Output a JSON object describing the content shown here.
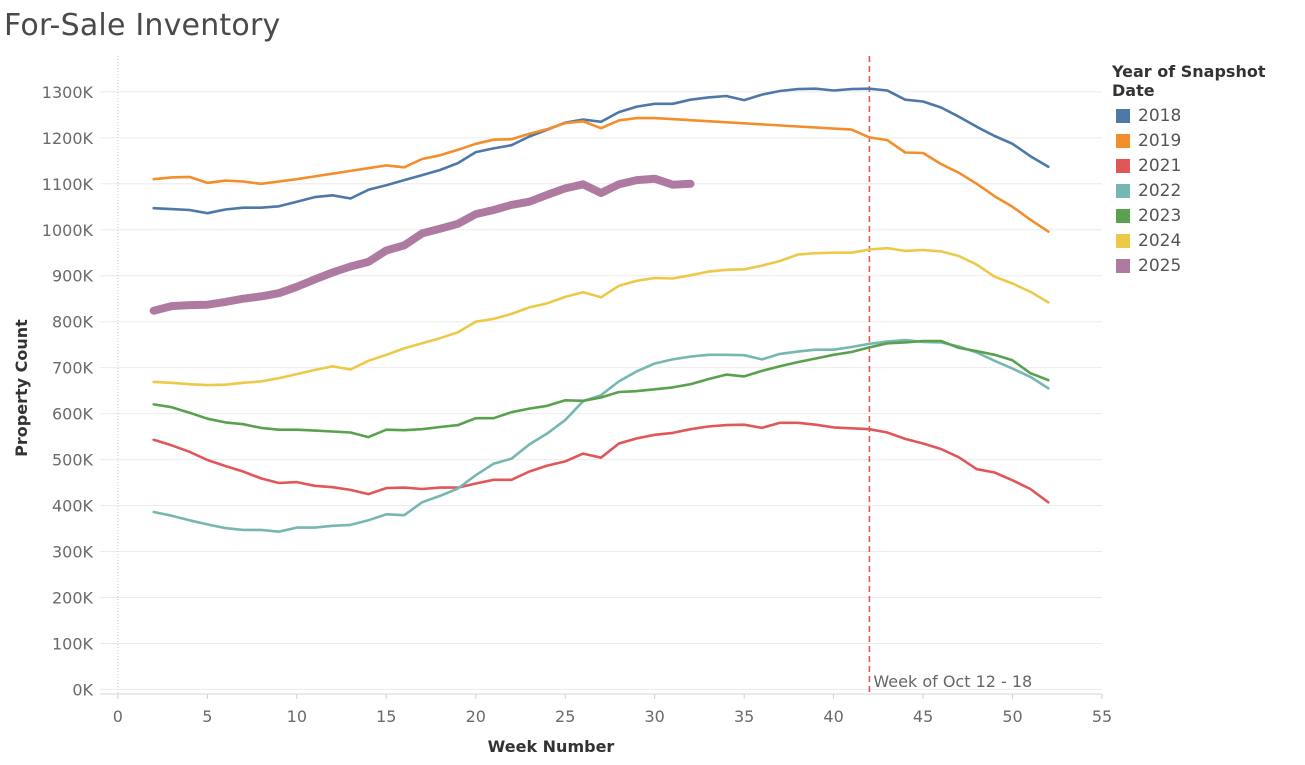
{
  "title": "For-Sale Inventory",
  "chart_data": {
    "type": "line",
    "title": "For-Sale Inventory",
    "xlabel": "Week Number",
    "ylabel": "Property Count",
    "xlim": [
      -1,
      55
    ],
    "ylim": [
      -10,
      1365
    ],
    "x_ticks": [
      0,
      5,
      10,
      15,
      20,
      25,
      30,
      35,
      40,
      45,
      50,
      55
    ],
    "y_ticks": [
      0,
      100,
      200,
      300,
      400,
      500,
      600,
      700,
      800,
      900,
      1000,
      1100,
      1200,
      1300
    ],
    "y_tick_labels": [
      "0K",
      "100K",
      "200K",
      "300K",
      "400K",
      "500K",
      "600K",
      "700K",
      "800K",
      "900K",
      "1000K",
      "1100K",
      "1200K",
      "1300K"
    ],
    "grid": "horizontal",
    "legend": {
      "title": "Year of Snapshot Date",
      "placement": "right"
    },
    "reference_line": {
      "x": 42,
      "label": "Week of Oct 12 - 18",
      "color": "#e15759"
    },
    "series": [
      {
        "name": "2018",
        "color": "#4e79a7",
        "x": [
          2,
          3,
          4,
          5,
          6,
          7,
          8,
          9,
          10,
          11,
          12,
          13,
          14,
          15,
          16,
          17,
          18,
          19,
          20,
          21,
          22,
          23,
          24,
          25,
          26,
          27,
          28,
          29,
          30,
          31,
          32,
          33,
          34,
          35,
          36,
          37,
          38,
          39,
          40,
          41,
          42,
          43,
          44,
          45,
          46,
          47,
          48,
          49,
          50,
          51,
          52
        ],
        "values": [
          1047,
          1045,
          1043,
          1036,
          1044,
          1048,
          1048,
          1051,
          1061,
          1071,
          1075,
          1068,
          1087,
          1097,
          1108,
          1119,
          1130,
          1145,
          1169,
          1177,
          1184,
          1203,
          1218,
          1233,
          1240,
          1235,
          1256,
          1268,
          1274,
          1274,
          1283,
          1288,
          1291,
          1282,
          1294,
          1302,
          1306,
          1307,
          1303,
          1306,
          1307,
          1303,
          1283,
          1279,
          1266,
          1246,
          1224,
          1204,
          1187,
          1160,
          1137
        ]
      },
      {
        "name": "2019",
        "color": "#f28e2b",
        "x": [
          2,
          3,
          4,
          5,
          6,
          7,
          8,
          9,
          10,
          11,
          12,
          13,
          14,
          15,
          16,
          17,
          18,
          19,
          20,
          21,
          22,
          23,
          24,
          25,
          26,
          27,
          28,
          29,
          30,
          41,
          42,
          43,
          44,
          45,
          46,
          47,
          48,
          49,
          50,
          51,
          52
        ],
        "values": [
          1110,
          1114,
          1115,
          1102,
          1107,
          1105,
          1100,
          1105,
          1110,
          1116,
          1122,
          1128,
          1134,
          1140,
          1136,
          1154,
          1162,
          1174,
          1187,
          1196,
          1197,
          1209,
          1219,
          1232,
          1236,
          1221,
          1238,
          1243,
          1243,
          1218,
          1201,
          1195,
          1168,
          1167,
          1143,
          1124,
          1100,
          1073,
          1050,
          1022,
          996
        ]
      },
      {
        "name": "2021",
        "color": "#e15759",
        "x": [
          2,
          3,
          4,
          5,
          6,
          7,
          8,
          9,
          10,
          11,
          12,
          13,
          14,
          15,
          16,
          17,
          18,
          19,
          20,
          21,
          22,
          23,
          24,
          25,
          26,
          27,
          28,
          29,
          30,
          31,
          32,
          33,
          34,
          35,
          36,
          37,
          38,
          39,
          40,
          41,
          42,
          43,
          44,
          45,
          46,
          47,
          48,
          49,
          50,
          51,
          52
        ],
        "values": [
          543,
          531,
          517,
          499,
          486,
          474,
          459,
          449,
          451,
          443,
          440,
          434,
          425,
          438,
          439,
          436,
          439,
          439,
          448,
          456,
          456,
          474,
          487,
          496,
          513,
          504,
          535,
          546,
          554,
          558,
          566,
          572,
          575,
          576,
          569,
          580,
          580,
          576,
          570,
          568,
          566,
          559,
          545,
          535,
          523,
          505,
          479,
          472,
          455,
          436,
          407
        ]
      },
      {
        "name": "2022",
        "color": "#76b7b2",
        "x": [
          2,
          3,
          4,
          5,
          6,
          7,
          8,
          9,
          10,
          11,
          12,
          13,
          14,
          15,
          16,
          17,
          18,
          19,
          20,
          21,
          22,
          23,
          24,
          25,
          26,
          27,
          28,
          29,
          30,
          31,
          32,
          33,
          34,
          35,
          36,
          37,
          38,
          39,
          40,
          41,
          42,
          43,
          44,
          45,
          46,
          47,
          48,
          49,
          50,
          51,
          52
        ],
        "values": [
          386,
          378,
          368,
          359,
          351,
          347,
          347,
          343,
          352,
          352,
          356,
          358,
          368,
          381,
          379,
          407,
          421,
          437,
          466,
          491,
          502,
          533,
          557,
          586,
          627,
          640,
          670,
          692,
          709,
          718,
          724,
          728,
          728,
          727,
          718,
          730,
          735,
          739,
          739,
          745,
          752,
          757,
          760,
          756,
          755,
          746,
          733,
          715,
          698,
          680,
          655
        ]
      },
      {
        "name": "2023",
        "color": "#59a14f",
        "x": [
          2,
          3,
          4,
          5,
          6,
          7,
          8,
          9,
          10,
          11,
          12,
          13,
          14,
          15,
          16,
          17,
          18,
          19,
          20,
          21,
          22,
          23,
          24,
          25,
          26,
          27,
          28,
          29,
          30,
          31,
          32,
          33,
          34,
          35,
          36,
          37,
          38,
          39,
          40,
          41,
          42,
          43,
          44,
          45,
          46,
          47,
          48,
          49,
          50,
          51,
          52
        ],
        "values": [
          620,
          614,
          602,
          589,
          581,
          577,
          569,
          565,
          565,
          563,
          561,
          559,
          549,
          565,
          564,
          566,
          571,
          575,
          590,
          590,
          603,
          611,
          617,
          629,
          628,
          635,
          647,
          649,
          653,
          657,
          664,
          675,
          685,
          681,
          693,
          703,
          712,
          720,
          728,
          734,
          744,
          753,
          755,
          758,
          758,
          743,
          736,
          728,
          716,
          688,
          673
        ]
      },
      {
        "name": "2024",
        "color": "#edc948",
        "x": [
          2,
          3,
          4,
          5,
          6,
          7,
          8,
          9,
          10,
          11,
          12,
          13,
          14,
          15,
          16,
          17,
          18,
          19,
          20,
          21,
          22,
          23,
          24,
          25,
          26,
          27,
          28,
          29,
          30,
          31,
          32,
          33,
          34,
          35,
          36,
          37,
          38,
          39,
          40,
          41,
          42,
          43,
          44,
          45,
          46,
          47,
          48,
          49,
          50,
          51,
          52
        ],
        "values": [
          669,
          667,
          664,
          662,
          663,
          667,
          670,
          677,
          686,
          695,
          703,
          696,
          715,
          728,
          742,
          753,
          764,
          777,
          800,
          806,
          817,
          831,
          840,
          854,
          864,
          853,
          878,
          889,
          895,
          894,
          901,
          909,
          913,
          914,
          922,
          932,
          946,
          949,
          950,
          950,
          957,
          960,
          954,
          956,
          953,
          943,
          924,
          898,
          883,
          865,
          842
        ]
      },
      {
        "name": "2025",
        "color": "#af7aa1",
        "x": [
          2,
          3,
          4,
          5,
          6,
          7,
          8,
          9,
          10,
          11,
          12,
          13,
          14,
          15,
          16,
          17,
          18,
          19,
          20,
          21,
          22,
          23,
          24,
          25,
          26,
          27,
          28,
          29,
          30,
          31,
          32
        ],
        "values": [
          824,
          834,
          836,
          837,
          843,
          850,
          855,
          862,
          876,
          892,
          907,
          920,
          930,
          955,
          966,
          992,
          1002,
          1013,
          1034,
          1043,
          1054,
          1061,
          1076,
          1090,
          1099,
          1080,
          1099,
          1108,
          1111,
          1098,
          1100
        ]
      }
    ]
  }
}
